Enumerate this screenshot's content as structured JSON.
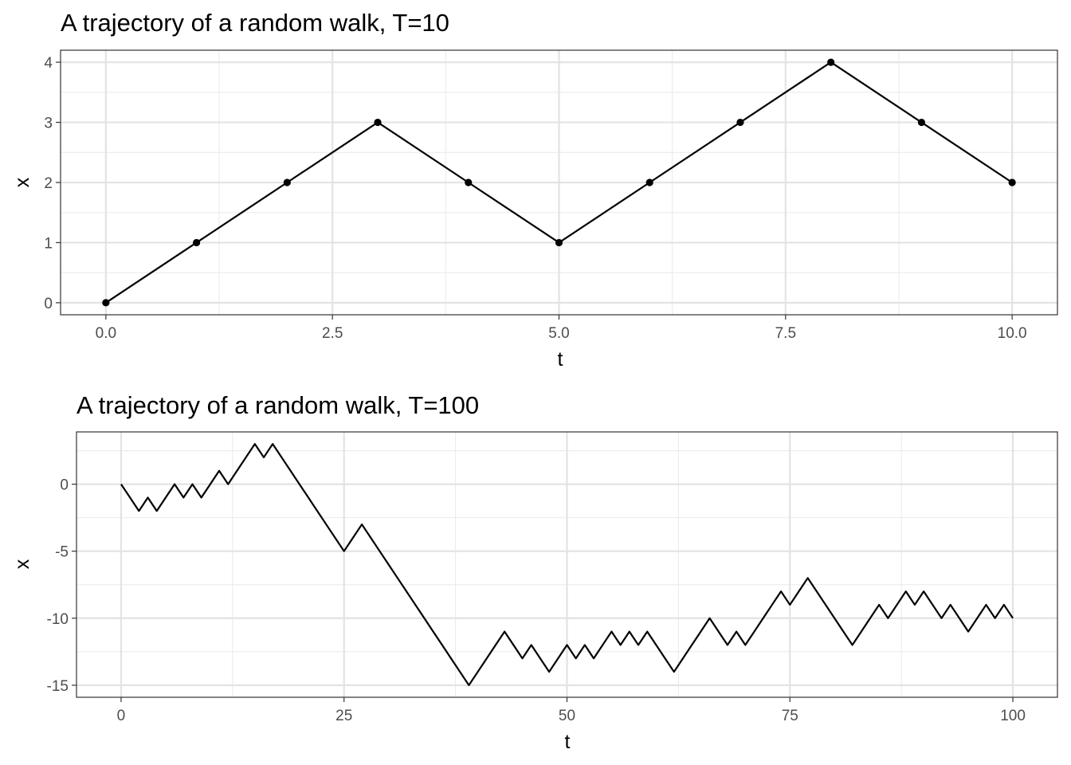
{
  "chart_data": [
    {
      "type": "line",
      "title": "A trajectory of a random walk, T=10",
      "xlabel": "t",
      "ylabel": "x",
      "xlim": [
        -0.5,
        10.5
      ],
      "ylim": [
        -0.2,
        4.2
      ],
      "xticks": [
        0,
        2.5,
        5,
        7.5,
        10
      ],
      "xtick_labels": [
        "0.0",
        "2.5",
        "5.0",
        "7.5",
        "10.0"
      ],
      "yticks": [
        0,
        1,
        2,
        3,
        4
      ],
      "ytick_labels": [
        "0",
        "1",
        "2",
        "3",
        "4"
      ],
      "grid": true,
      "points": true,
      "x": [
        0,
        1,
        2,
        3,
        4,
        5,
        6,
        7,
        8,
        9,
        10
      ],
      "y": [
        0,
        1,
        2,
        3,
        2,
        1,
        2,
        3,
        4,
        3,
        2
      ]
    },
    {
      "type": "line",
      "title": "A trajectory of a random walk, T=100",
      "xlabel": "t",
      "ylabel": "x",
      "xlim": [
        -5,
        105
      ],
      "ylim": [
        -15.9,
        3.9
      ],
      "xticks": [
        0,
        25,
        50,
        75,
        100
      ],
      "xtick_labels": [
        "0",
        "25",
        "50",
        "75",
        "100"
      ],
      "yticks": [
        0,
        -5,
        -10,
        -15
      ],
      "ytick_labels": [
        "0",
        "-5",
        "-10",
        "-15"
      ],
      "grid": true,
      "points": false,
      "x": [
        0,
        1,
        2,
        3,
        4,
        5,
        6,
        7,
        8,
        9,
        10,
        11,
        12,
        13,
        14,
        15,
        16,
        17,
        18,
        19,
        20,
        21,
        22,
        23,
        24,
        25,
        26,
        27,
        28,
        29,
        30,
        31,
        32,
        33,
        34,
        35,
        36,
        37,
        38,
        39,
        40,
        41,
        42,
        43,
        44,
        45,
        46,
        47,
        48,
        49,
        50,
        51,
        52,
        53,
        54,
        55,
        56,
        57,
        58,
        59,
        60,
        61,
        62,
        63,
        64,
        65,
        66,
        67,
        68,
        69,
        70,
        71,
        72,
        73,
        74,
        75,
        76,
        77,
        78,
        79,
        80,
        81,
        82,
        83,
        84,
        85,
        86,
        87,
        88,
        89,
        90,
        91,
        92,
        93,
        94,
        95,
        96,
        97,
        98,
        99,
        100
      ],
      "y": [
        0,
        -1,
        -2,
        -1,
        -2,
        -1,
        0,
        -1,
        0,
        -1,
        0,
        1,
        0,
        1,
        2,
        3,
        2,
        3,
        2,
        1,
        0,
        -1,
        -2,
        -3,
        -4,
        -5,
        -4,
        -3,
        -4,
        -5,
        -6,
        -7,
        -8,
        -9,
        -10,
        -11,
        -12,
        -13,
        -14,
        -15,
        -14,
        -13,
        -12,
        -11,
        -12,
        -13,
        -12,
        -13,
        -14,
        -13,
        -12,
        -13,
        -12,
        -13,
        -12,
        -11,
        -12,
        -11,
        -12,
        -11,
        -12,
        -13,
        -14,
        -13,
        -12,
        -11,
        -10,
        -11,
        -12,
        -11,
        -12,
        -11,
        -10,
        -9,
        -8,
        -9,
        -8,
        -7,
        -8,
        -9,
        -10,
        -11,
        -12,
        -11,
        -10,
        -9,
        -10,
        -9,
        -8,
        -9,
        -8,
        -9,
        -10,
        -9,
        -10,
        -11,
        -10,
        -9,
        -10,
        -9,
        -10
      ]
    }
  ]
}
